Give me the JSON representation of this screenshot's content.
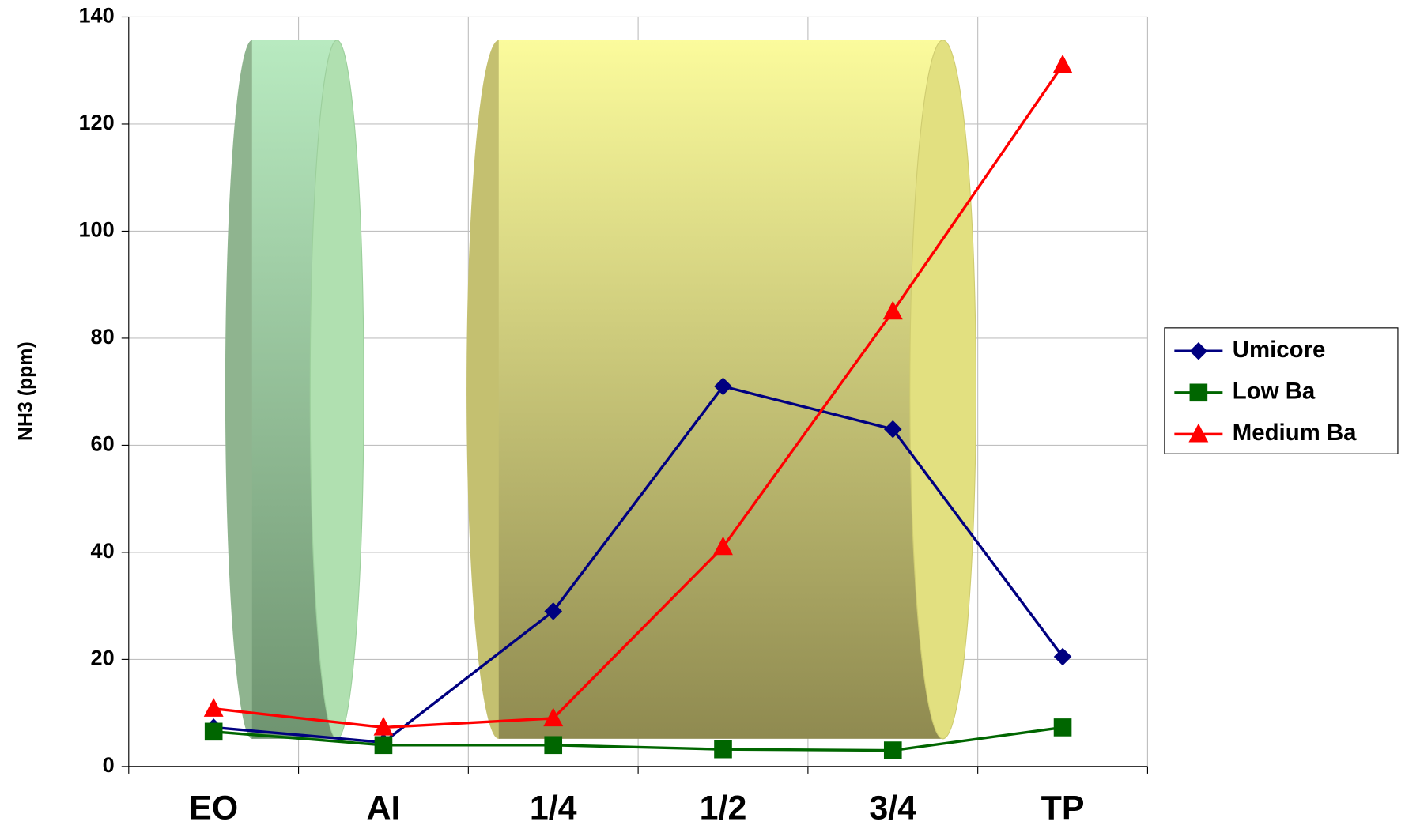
{
  "chart_data": {
    "type": "line",
    "y_label": "NH3 (ppm)",
    "categories": [
      "EO",
      "AI",
      "1/4",
      "1/2",
      "3/4",
      "TP"
    ],
    "series": [
      {
        "name": "Umicore",
        "color": "#000080",
        "marker": "diamond",
        "values": [
          7.3,
          4.5,
          29,
          71,
          63,
          20.5
        ]
      },
      {
        "name": "Low Ba",
        "color": "#006600",
        "marker": "square",
        "values": [
          6.5,
          4,
          4,
          3.2,
          3,
          7.3
        ]
      },
      {
        "name": "Medium Ba",
        "color": "#ff0000",
        "marker": "triangle",
        "values": [
          10.8,
          7.3,
          9,
          41,
          85,
          131
        ]
      }
    ],
    "ylim": [
      0,
      140
    ],
    "yticks": [
      0,
      20,
      40,
      60,
      80,
      100,
      120,
      140
    ],
    "grid": true,
    "legend": "right"
  }
}
